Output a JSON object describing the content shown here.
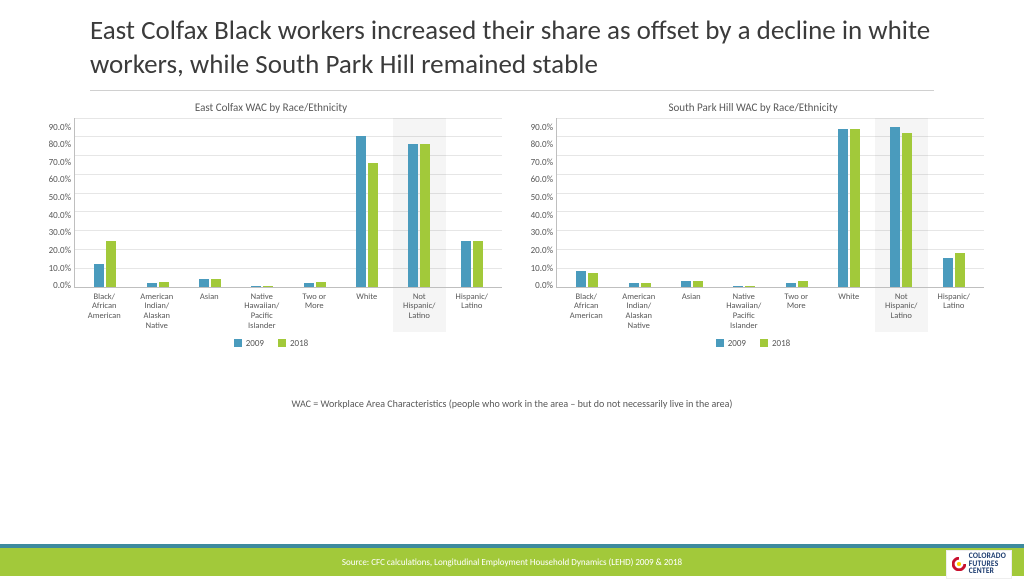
{
  "title": "East Colfax Black workers increased their share as offset by a decline in white workers, while South Park Hill remained stable",
  "footnote": "WAC = Workplace Area Characteristics (people who work in the area – but do not necessarily live in the area)",
  "source": "Source: CFC calculations, Longitudinal Employment Household Dynamics (LEHD) 2009 & 2018",
  "logo_line1": "COLORADO",
  "logo_line2": "FUTURES",
  "logo_line3": "CENTER",
  "colors": {
    "series_2009": "#4a9bbd",
    "series_2018": "#a2c93a",
    "grid": "#e6e6e6",
    "axis": "#bfbfbf",
    "text_muted": "#595959",
    "footer_teal": "#3d8a9e",
    "footer_green": "#a2c93a"
  },
  "y_axis": {
    "max": 90,
    "step": 10,
    "ticks": [
      "90.0%",
      "80.0%",
      "70.0%",
      "60.0%",
      "50.0%",
      "40.0%",
      "30.0%",
      "20.0%",
      "10.0%",
      "0.0%"
    ]
  },
  "legend": {
    "s1": "2009",
    "s2": "2018"
  },
  "categories": [
    {
      "label_lines": [
        "Black/",
        "African",
        "American"
      ],
      "highlight": false
    },
    {
      "label_lines": [
        "American",
        "Indian/",
        "Alaskan",
        "Native"
      ],
      "highlight": false
    },
    {
      "label_lines": [
        "Asian"
      ],
      "highlight": false
    },
    {
      "label_lines": [
        "Native",
        "Hawaiian/",
        "Pacific",
        "Islander"
      ],
      "highlight": false
    },
    {
      "label_lines": [
        "Two or",
        "More"
      ],
      "highlight": false
    },
    {
      "label_lines": [
        "White"
      ],
      "highlight": false
    },
    {
      "label_lines": [
        "Not",
        "Hispanic/",
        "Latino"
      ],
      "highlight": true
    },
    {
      "label_lines": [
        "Hispanic/",
        "Latino"
      ],
      "highlight": false
    }
  ],
  "charts": [
    {
      "title": "East Colfax WAC by Race/Ethnicity",
      "series_2009": [
        12,
        2,
        4,
        0.5,
        2,
        80,
        76,
        24
      ],
      "series_2018": [
        24,
        2.5,
        4,
        0.5,
        2.5,
        66,
        76,
        24
      ]
    },
    {
      "title": "South Park Hill WAC by Race/Ethnicity",
      "series_2009": [
        8,
        2,
        3,
        0.3,
        2,
        84,
        85,
        15
      ],
      "series_2018": [
        7,
        2,
        3,
        0.3,
        3,
        84,
        82,
        18
      ]
    }
  ]
}
